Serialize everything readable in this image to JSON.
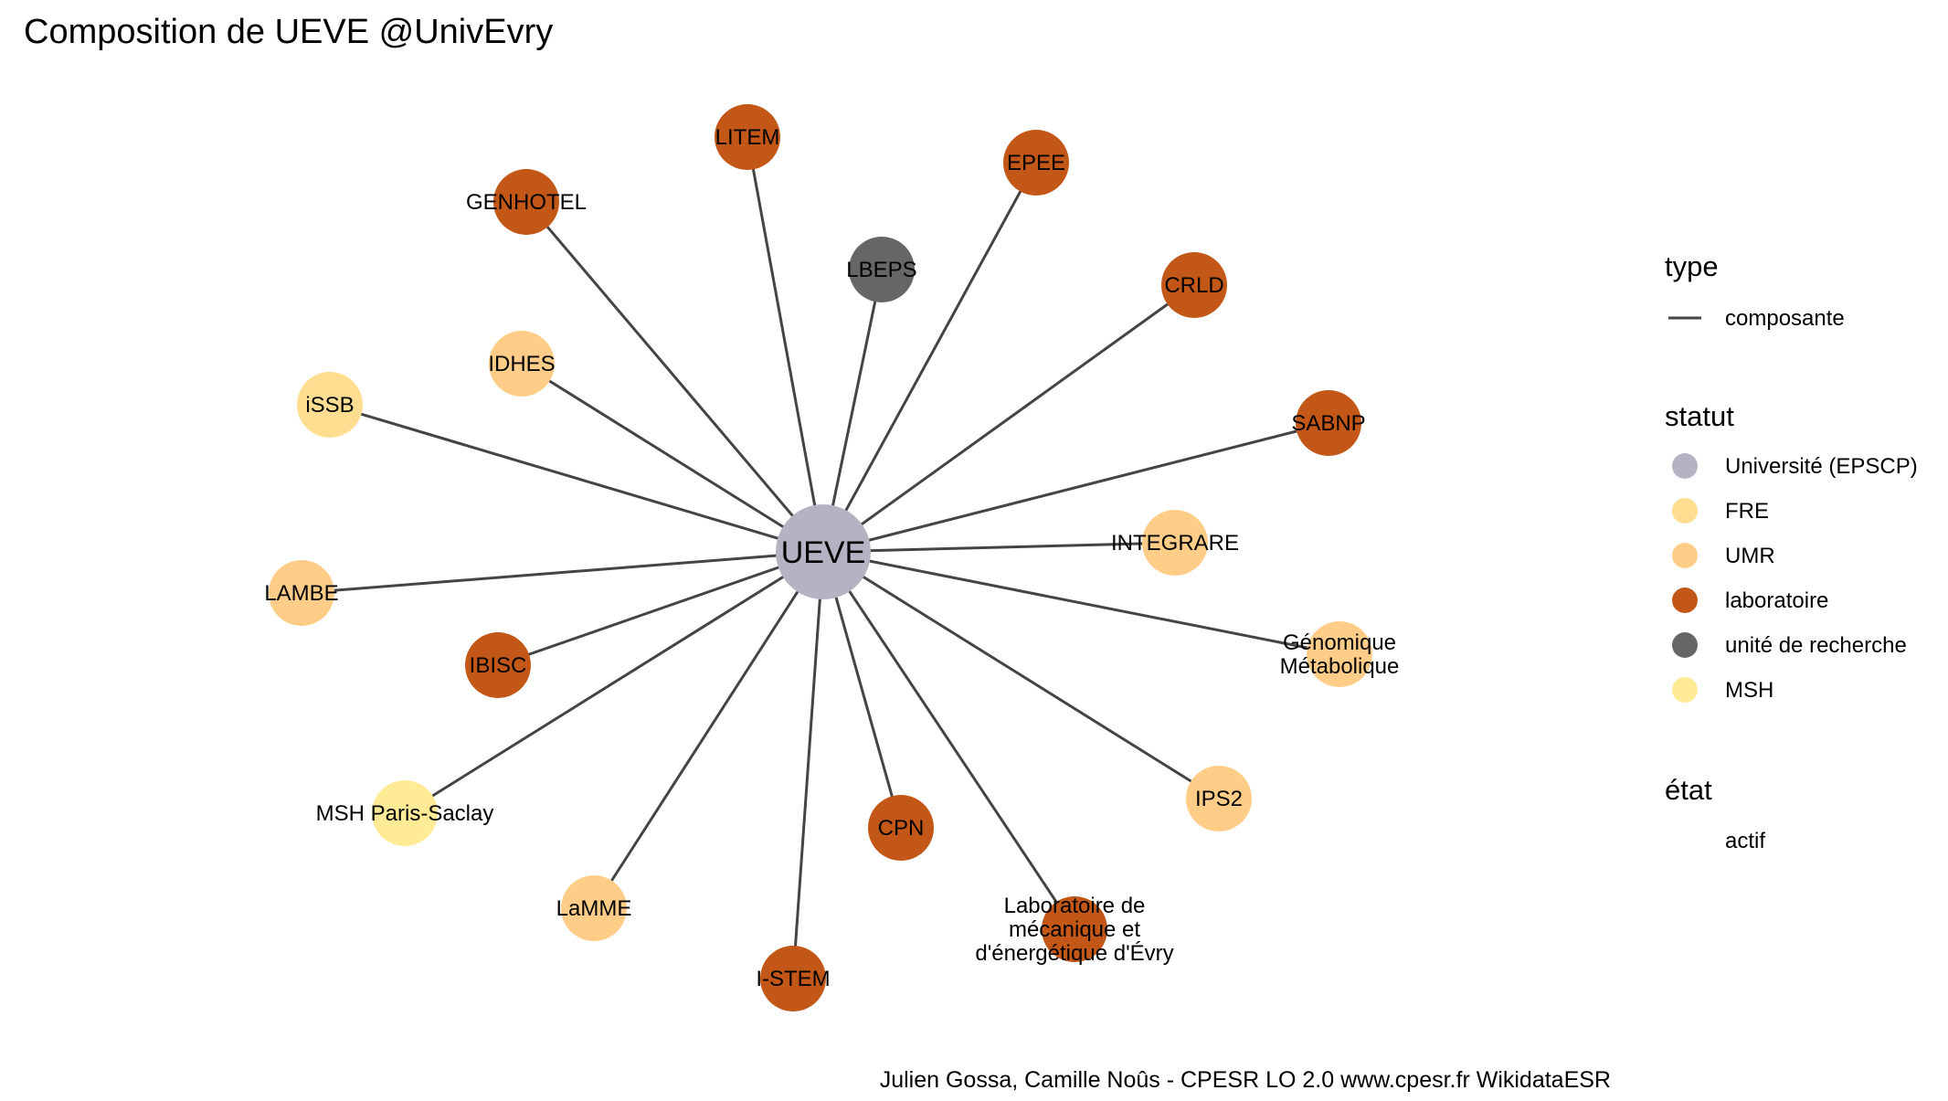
{
  "title": "Composition de UEVE @UnivEvry",
  "caption": "Julien Gossa, Camille Noûs - CPESR LO 2.0 www.cpesr.fr WikidataESR",
  "colors": {
    "edge": "#444444",
    "universite": "#b3b3c4",
    "fre": "#ffde91",
    "umr": "#ffcd87",
    "laboratoire": "#c25717",
    "unite_de_recherche": "#666666",
    "msh": "#ffeb96"
  },
  "center": {
    "label": "UEVE",
    "statut": "universite"
  },
  "nodes": [
    {
      "label": "LITEM",
      "statut": "laboratoire"
    },
    {
      "label": "EPEE",
      "statut": "laboratoire"
    },
    {
      "label": "GENHOTEL",
      "statut": "laboratoire"
    },
    {
      "label": "LBEPS",
      "statut": "unite_de_recherche"
    },
    {
      "label": "CRLD",
      "statut": "laboratoire"
    },
    {
      "label": "IDHES",
      "statut": "umr"
    },
    {
      "label": "iSSB",
      "statut": "fre"
    },
    {
      "label": "SABNP",
      "statut": "laboratoire"
    },
    {
      "label": "INTEGRARE",
      "statut": "umr"
    },
    {
      "label": "LAMBE",
      "statut": "umr"
    },
    {
      "label": "Génomique\nMétabolique",
      "statut": "umr"
    },
    {
      "label": "IBISC",
      "statut": "laboratoire"
    },
    {
      "label": "IPS2",
      "statut": "umr"
    },
    {
      "label": "MSH Paris-Saclay",
      "statut": "msh"
    },
    {
      "label": "CPN",
      "statut": "laboratoire"
    },
    {
      "label": "LaMME",
      "statut": "umr"
    },
    {
      "label": "Laboratoire de\nmécanique et\nd'énergétique d'Évry",
      "statut": "laboratoire"
    },
    {
      "label": "I-STEM",
      "statut": "laboratoire"
    }
  ],
  "legend": {
    "type": {
      "title": "type",
      "items": [
        {
          "label": "composante"
        }
      ]
    },
    "statut": {
      "title": "statut",
      "items": [
        {
          "label": "Université (EPSCP)",
          "statut": "universite"
        },
        {
          "label": "FRE",
          "statut": "fre"
        },
        {
          "label": "UMR",
          "statut": "umr"
        },
        {
          "label": "laboratoire",
          "statut": "laboratoire"
        },
        {
          "label": "unité de recherche",
          "statut": "unite_de_recherche"
        },
        {
          "label": "MSH",
          "statut": "msh"
        }
      ]
    },
    "etat": {
      "title": "état",
      "items": [
        {
          "label": "actif"
        }
      ]
    }
  }
}
